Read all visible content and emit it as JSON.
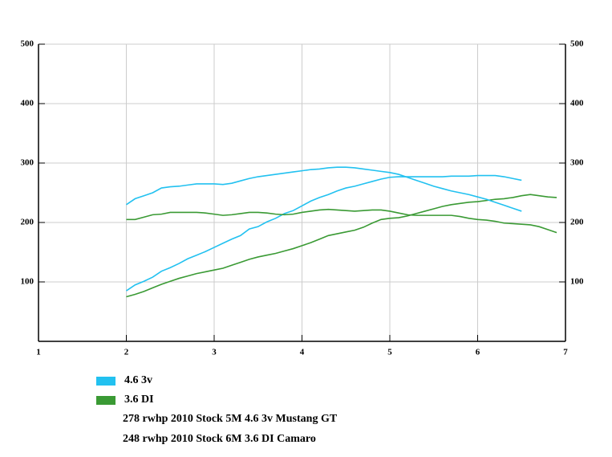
{
  "chart_data": {
    "type": "line",
    "xlim": [
      1,
      7
    ],
    "xticks": [
      1,
      2,
      3,
      4,
      5,
      6,
      7
    ],
    "ylim": [
      0,
      500
    ],
    "yticks": [
      100,
      200,
      300,
      400,
      500
    ],
    "y2lim": [
      0,
      500
    ],
    "y2ticks": [
      100,
      200,
      300,
      400,
      500
    ],
    "grid": true,
    "series": [
      {
        "name": "4.6 3v",
        "color": "#22c1f0",
        "x": [
          2.0,
          2.1,
          2.2,
          2.3,
          2.4,
          2.5,
          2.6,
          2.7,
          2.8,
          2.9,
          3.0,
          3.1,
          3.2,
          3.3,
          3.4,
          3.5,
          3.6,
          3.7,
          3.8,
          3.9,
          4.0,
          4.1,
          4.2,
          4.3,
          4.4,
          4.5,
          4.6,
          4.7,
          4.8,
          4.9,
          5.0,
          5.1,
          5.2,
          5.3,
          5.4,
          5.5,
          5.6,
          5.7,
          5.8,
          5.9,
          6.0,
          6.1,
          6.2,
          6.3,
          6.4,
          6.5
        ],
        "values": [
          85,
          95,
          101,
          108,
          118,
          124,
          131,
          139,
          145,
          151,
          158,
          165,
          172,
          178,
          189,
          193,
          201,
          207,
          215,
          220,
          228,
          236,
          242,
          247,
          253,
          258,
          261,
          265,
          269,
          273,
          276,
          277,
          277,
          277,
          277,
          277,
          277,
          278,
          278,
          278,
          279,
          279,
          279,
          277,
          274,
          271
        ]
      },
      {
        "name": "3.6 DI",
        "color": "#3a9a34",
        "x": [
          2.0,
          2.1,
          2.2,
          2.3,
          2.4,
          2.5,
          2.6,
          2.7,
          2.8,
          2.9,
          3.0,
          3.1,
          3.2,
          3.3,
          3.4,
          3.5,
          3.6,
          3.7,
          3.8,
          3.9,
          4.0,
          4.1,
          4.2,
          4.3,
          4.4,
          4.5,
          4.6,
          4.7,
          4.8,
          4.9,
          5.0,
          5.1,
          5.2,
          5.3,
          5.4,
          5.5,
          5.6,
          5.7,
          5.8,
          5.9,
          6.0,
          6.1,
          6.2,
          6.3,
          6.4,
          6.5,
          6.6,
          6.7,
          6.8,
          6.9
        ],
        "values": [
          75,
          79,
          84,
          90,
          96,
          101,
          106,
          110,
          114,
          117,
          120,
          123,
          128,
          133,
          138,
          142,
          145,
          148,
          152,
          156,
          161,
          166,
          172,
          178,
          181,
          184,
          187,
          192,
          199,
          205,
          207,
          208,
          211,
          215,
          219,
          223,
          227,
          230,
          232,
          234,
          235,
          237,
          239,
          240,
          242,
          245,
          247,
          245,
          243,
          242
        ]
      },
      {
        "color": "#22c1f0",
        "x": [
          2.0,
          2.1,
          2.2,
          2.3,
          2.4,
          2.5,
          2.6,
          2.7,
          2.8,
          2.9,
          3.0,
          3.1,
          3.2,
          3.3,
          3.4,
          3.5,
          3.6,
          3.7,
          3.8,
          3.9,
          4.0,
          4.1,
          4.2,
          4.3,
          4.4,
          4.5,
          4.6,
          4.7,
          4.8,
          4.9,
          5.0,
          5.1,
          5.2,
          5.3,
          5.4,
          5.5,
          5.6,
          5.7,
          5.8,
          5.9,
          6.0,
          6.1,
          6.2,
          6.3,
          6.4,
          6.5
        ],
        "values": [
          230,
          240,
          245,
          250,
          258,
          260,
          261,
          263,
          265,
          265,
          265,
          264,
          266,
          270,
          274,
          277,
          279,
          281,
          283,
          285,
          287,
          289,
          290,
          292,
          293,
          293,
          292,
          290,
          288,
          286,
          284,
          281,
          276,
          271,
          266,
          261,
          257,
          253,
          250,
          247,
          243,
          239,
          234,
          229,
          224,
          219
        ]
      },
      {
        "color": "#3a9a34",
        "x": [
          2.0,
          2.1,
          2.2,
          2.3,
          2.4,
          2.5,
          2.6,
          2.7,
          2.8,
          2.9,
          3.0,
          3.1,
          3.2,
          3.3,
          3.4,
          3.5,
          3.6,
          3.7,
          3.8,
          3.9,
          4.0,
          4.1,
          4.2,
          4.3,
          4.4,
          4.5,
          4.6,
          4.7,
          4.8,
          4.9,
          5.0,
          5.1,
          5.2,
          5.3,
          5.4,
          5.5,
          5.6,
          5.7,
          5.8,
          5.9,
          6.0,
          6.1,
          6.2,
          6.3,
          6.4,
          6.5,
          6.6,
          6.7,
          6.8,
          6.9
        ],
        "values": [
          205,
          205,
          209,
          213,
          214,
          217,
          217,
          217,
          217,
          216,
          214,
          212,
          213,
          215,
          217,
          217,
          216,
          214,
          213,
          214,
          217,
          219,
          221,
          222,
          221,
          220,
          219,
          220,
          221,
          221,
          219,
          216,
          213,
          212,
          212,
          212,
          212,
          212,
          210,
          207,
          205,
          204,
          202,
          199,
          198,
          197,
          196,
          193,
          188,
          183
        ]
      }
    ],
    "notes": [
      "278 rwhp 2010 Stock 5M 4.6 3v Mustang GT",
      "248 rwhp 2010 Stock 6M 3.6 DI Camaro"
    ]
  }
}
